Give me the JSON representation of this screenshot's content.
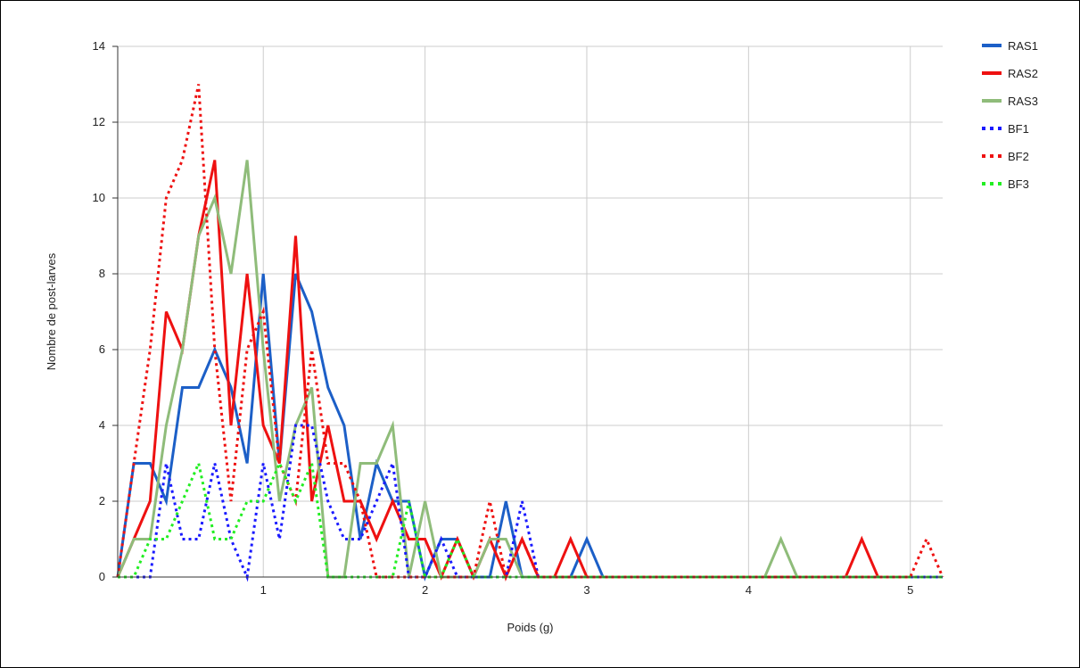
{
  "chart_data": {
    "type": "line",
    "xlabel": "Poids (g)",
    "ylabel": "Nombre de post-larves",
    "xlim": [
      0.1,
      5.2
    ],
    "ylim": [
      0,
      14
    ],
    "x_ticks": [
      1,
      2,
      3,
      4,
      5
    ],
    "y_ticks": [
      0,
      2,
      4,
      6,
      8,
      10,
      12,
      14
    ],
    "grid": true,
    "legend_position": "right",
    "x": [
      0.1,
      0.2,
      0.3,
      0.4,
      0.5,
      0.6,
      0.7,
      0.8,
      0.9,
      1.0,
      1.1,
      1.2,
      1.3,
      1.4,
      1.5,
      1.6,
      1.7,
      1.8,
      1.9,
      2.0,
      2.1,
      2.2,
      2.3,
      2.4,
      2.5,
      2.6,
      2.7,
      2.8,
      2.9,
      3.0,
      3.1,
      3.2,
      3.3,
      3.4,
      3.5,
      3.6,
      3.7,
      3.8,
      3.9,
      4.0,
      4.1,
      4.2,
      4.3,
      4.4,
      4.5,
      4.6,
      4.7,
      4.8,
      4.9,
      5.0,
      5.1,
      5.2
    ],
    "series": [
      {
        "name": "RAS1",
        "color": "#1c5fc7",
        "dash": "solid",
        "values": [
          0,
          3,
          3,
          2,
          5,
          5,
          6,
          5,
          3,
          8,
          3,
          8,
          7,
          5,
          4,
          1,
          3,
          2,
          2,
          0,
          1,
          1,
          0,
          0,
          2,
          0,
          0,
          0,
          0,
          1,
          0,
          0,
          0,
          0,
          0,
          0,
          0,
          0,
          0,
          0,
          0,
          0,
          0,
          0,
          0,
          0,
          0,
          0,
          0,
          0,
          0,
          0
        ]
      },
      {
        "name": "RAS2",
        "color": "#ee1111",
        "dash": "solid",
        "values": [
          0,
          1,
          2,
          7,
          6,
          9,
          11,
          4,
          8,
          4,
          3,
          9,
          2,
          4,
          2,
          2,
          1,
          2,
          1,
          1,
          0,
          1,
          0,
          1,
          0,
          1,
          0,
          0,
          1,
          0,
          0,
          0,
          0,
          0,
          0,
          0,
          0,
          0,
          0,
          0,
          0,
          0,
          0,
          0,
          0,
          0,
          1,
          0,
          0,
          0,
          0,
          0
        ]
      },
      {
        "name": "RAS3",
        "color": "#8fbc7a",
        "dash": "solid",
        "values": [
          0,
          1,
          1,
          4,
          6,
          9,
          10,
          8,
          11,
          6,
          2,
          4,
          5,
          0,
          0,
          3,
          3,
          4,
          0,
          2,
          0,
          0,
          0,
          1,
          1,
          0,
          0,
          0,
          0,
          0,
          0,
          0,
          0,
          0,
          0,
          0,
          0,
          0,
          0,
          0,
          0,
          1,
          0,
          0,
          0,
          0,
          0,
          0,
          0,
          0,
          0,
          0
        ]
      },
      {
        "name": "BF1",
        "color": "#1a1aff",
        "dash": "dotted",
        "values": [
          0,
          0,
          0,
          3,
          1,
          1,
          3,
          1,
          0,
          3,
          1,
          4,
          4,
          2,
          1,
          1,
          2,
          3,
          0,
          0,
          1,
          0,
          0,
          0,
          0,
          2,
          0,
          0,
          0,
          0,
          0,
          0,
          0,
          0,
          0,
          0,
          0,
          0,
          0,
          0,
          0,
          0,
          0,
          0,
          0,
          0,
          0,
          0,
          0,
          0,
          0,
          0
        ]
      },
      {
        "name": "BF2",
        "color": "#ee1111",
        "dash": "dotted",
        "values": [
          0,
          3,
          6,
          10,
          11,
          13,
          6,
          2,
          6,
          7,
          3,
          2,
          6,
          3,
          3,
          2,
          0,
          0,
          0,
          0,
          0,
          0,
          0,
          2,
          0,
          1,
          0,
          0,
          0,
          0,
          0,
          0,
          0,
          0,
          0,
          0,
          0,
          0,
          0,
          0,
          0,
          0,
          0,
          0,
          0,
          0,
          0,
          0,
          0,
          0,
          1,
          0
        ]
      },
      {
        "name": "BF3",
        "color": "#22ee22",
        "dash": "dotted",
        "values": [
          0,
          0,
          1,
          1,
          2,
          3,
          1,
          1,
          2,
          2,
          3,
          2,
          3,
          0,
          0,
          0,
          0,
          0,
          2,
          0,
          0,
          1,
          0,
          0,
          0,
          0,
          0,
          0,
          0,
          0,
          0,
          0,
          0,
          0,
          0,
          0,
          0,
          0,
          0,
          0,
          0,
          0,
          0,
          0,
          0,
          0,
          0,
          0,
          0,
          0,
          0,
          0
        ]
      }
    ]
  }
}
